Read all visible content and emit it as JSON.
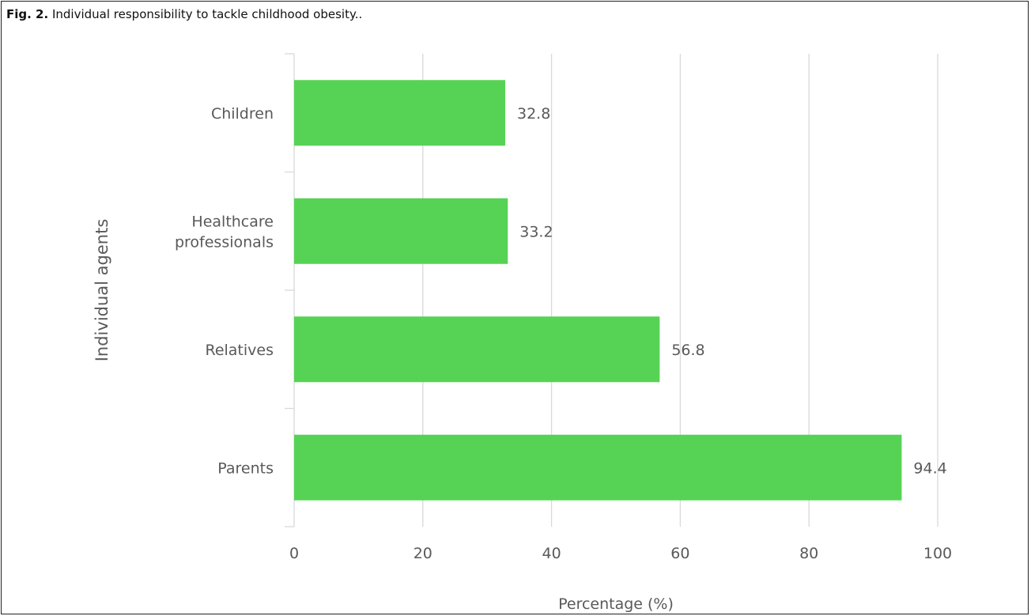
{
  "figure": {
    "label": "Fig. 2.",
    "caption": "Individual responsibility to tackle childhood obesity.."
  },
  "colors": {
    "bar": "#56d354",
    "grid": "#d9d9d9",
    "axis_text": "#595959"
  },
  "chart_data": {
    "type": "bar",
    "orientation": "horizontal",
    "categories": [
      "Children",
      "Healthcare professionals",
      "Relatives",
      "Parents"
    ],
    "category_lines": [
      [
        "Children"
      ],
      [
        "Healthcare",
        "professionals"
      ],
      [
        "Relatives"
      ],
      [
        "Parents"
      ]
    ],
    "values": [
      32.8,
      33.2,
      56.8,
      94.4
    ],
    "data_labels": [
      "32.8",
      "33.2",
      "56.8",
      "94.4"
    ],
    "xlabel": "Percentage (%)",
    "ylabel": "Individual agents",
    "xlim": [
      0,
      100
    ],
    "xticks": [
      0,
      20,
      40,
      60,
      80,
      100
    ],
    "xtick_labels": [
      "0",
      "20",
      "40",
      "60",
      "80",
      "100"
    ],
    "grid": "vertical",
    "legend": "none"
  }
}
